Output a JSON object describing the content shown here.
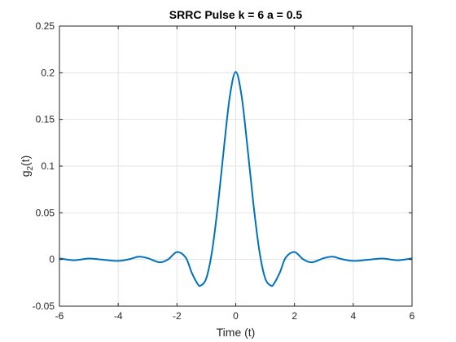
{
  "chart_data": {
    "type": "line",
    "title": "SRRC Pulse k = 6  a = 0.5",
    "xlabel": "Time (t)",
    "ylabel_main": "g",
    "ylabel_sub": "2",
    "ylabel_tail": "(t)",
    "xlim": [
      -6,
      6
    ],
    "ylim": [
      -0.05,
      0.25
    ],
    "xticks": [
      -6,
      -4,
      -2,
      0,
      2,
      4,
      6
    ],
    "yticks": [
      -0.05,
      0,
      0.05,
      0.1,
      0.15,
      0.2,
      0.25
    ],
    "xtick_labels": [
      "-6",
      "-4",
      "-2",
      "0",
      "2",
      "4",
      "6"
    ],
    "ytick_labels": [
      "-0.05",
      "0",
      "0.05",
      "0.1",
      "0.15",
      "0.2",
      "0.25"
    ],
    "grid": true,
    "series": [
      {
        "color": "#0072BD",
        "x": [
          -6,
          -5.5,
          -5,
          -4.5,
          -4,
          -3.6,
          -3.3,
          -3,
          -2.6,
          -2.3,
          -2,
          -1.7,
          -1.5,
          -1.3,
          -1.2,
          -1,
          -0.8,
          -0.6,
          -0.4,
          -0.2,
          0,
          0.2,
          0.4,
          0.6,
          0.8,
          1,
          1.2,
          1.3,
          1.5,
          1.7,
          2,
          2.3,
          2.6,
          3,
          3.3,
          3.6,
          4,
          4.5,
          5,
          5.5,
          6
        ],
        "y": [
          0.0012,
          -0.0008,
          0.001,
          -0.0003,
          -0.0015,
          0.0005,
          0.003,
          0.0015,
          -0.003,
          0.0001,
          0.008,
          0.002,
          -0.014,
          -0.026,
          -0.028,
          -0.02,
          0.01,
          0.06,
          0.12,
          0.175,
          0.201,
          0.175,
          0.12,
          0.06,
          0.01,
          -0.02,
          -0.028,
          -0.026,
          -0.014,
          0.002,
          0.008,
          0.0001,
          -0.003,
          0.0015,
          0.003,
          0.0005,
          -0.0015,
          -0.0003,
          0.001,
          -0.0008,
          0.0012
        ]
      }
    ]
  }
}
